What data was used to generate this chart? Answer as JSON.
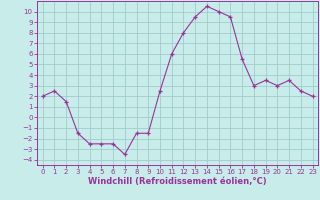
{
  "x": [
    0,
    1,
    2,
    3,
    4,
    5,
    6,
    7,
    8,
    9,
    10,
    11,
    12,
    13,
    14,
    15,
    16,
    17,
    18,
    19,
    20,
    21,
    22,
    23
  ],
  "y": [
    2,
    2.5,
    1.5,
    -1.5,
    -2.5,
    -2.5,
    -2.5,
    -3.5,
    -1.5,
    -1.5,
    2.5,
    6,
    8,
    9.5,
    10.5,
    10,
    9.5,
    5.5,
    3,
    3.5,
    3,
    3.5,
    2.5,
    2
  ],
  "line_color": "#993399",
  "marker_color": "#993399",
  "bg_color": "#c8ecea",
  "grid_color": "#a0cccc",
  "xlabel": "Windchill (Refroidissement éolien,°C)",
  "ylim": [
    -4.5,
    11
  ],
  "xlim": [
    -0.5,
    23.5
  ],
  "yticks": [
    -4,
    -3,
    -2,
    -1,
    0,
    1,
    2,
    3,
    4,
    5,
    6,
    7,
    8,
    9,
    10
  ],
  "xticks": [
    0,
    1,
    2,
    3,
    4,
    5,
    6,
    7,
    8,
    9,
    10,
    11,
    12,
    13,
    14,
    15,
    16,
    17,
    18,
    19,
    20,
    21,
    22,
    23
  ],
  "tick_label_color": "#993399",
  "axis_color": "#993399",
  "xlabel_color": "#993399",
  "tick_fontsize": 5.0,
  "xlabel_fontsize": 6.0
}
